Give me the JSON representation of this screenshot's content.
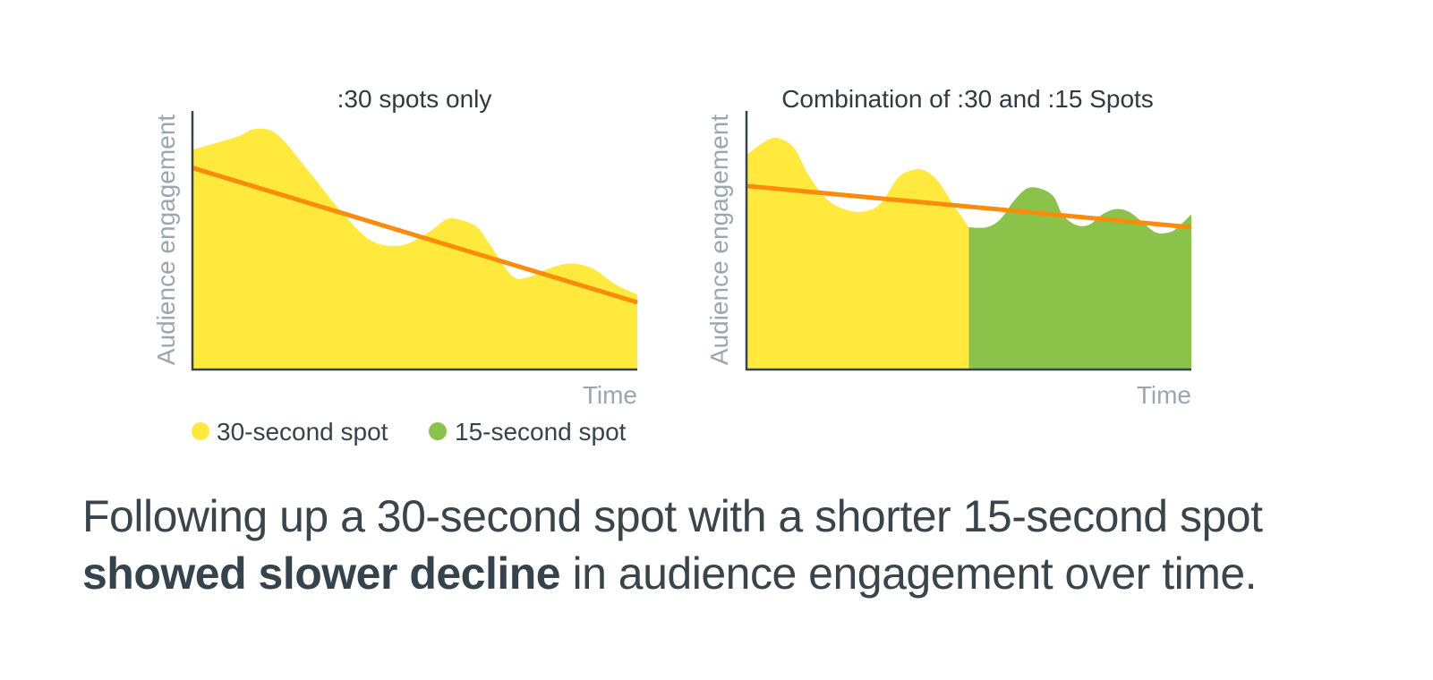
{
  "colors": {
    "thirty_second": "#FFE93D",
    "fifteen_second": "#8BC24A",
    "trend": "#FA8C0A",
    "axis": "#36444C",
    "muted_text": "#9AA7B0"
  },
  "legend": {
    "items": [
      {
        "label": "30-second spot",
        "color": "#FFE93D"
      },
      {
        "label": "15-second spot",
        "color": "#8BC24A"
      }
    ]
  },
  "caption": {
    "line1": "Following up a 30-second spot with a shorter 15-second spot",
    "bold": "showed slower decline",
    "rest": " in audience engagement over time."
  },
  "chart_data": [
    {
      "type": "area",
      "title": ":30 spots only",
      "xlabel": "Time",
      "ylabel": "Audience engagement",
      "xlim": [
        0,
        100
      ],
      "ylim": [
        0,
        100
      ],
      "grid": false,
      "ticks": false,
      "series": [
        {
          "name": "30-second spot",
          "color": "#FFE93D",
          "x": [
            0,
            10,
            14,
            19,
            26,
            33,
            40,
            47,
            53,
            57,
            60,
            64,
            67,
            72,
            76,
            80,
            85,
            90,
            95,
            100
          ],
          "values": [
            85,
            90,
            93,
            91,
            77,
            62,
            50,
            48,
            53,
            58,
            58,
            55,
            48,
            36,
            36,
            39,
            41,
            39,
            33,
            29
          ]
        }
      ],
      "trend": {
        "color": "#FA8C0A",
        "x": [
          0,
          100
        ],
        "values": [
          78,
          26
        ]
      }
    },
    {
      "type": "area",
      "title": "Combination of :30 and :15 Spots",
      "xlabel": "Time",
      "ylabel": "Audience engagement",
      "xlim": [
        0,
        100
      ],
      "ylim": [
        0,
        100
      ],
      "grid": false,
      "ticks": false,
      "series": [
        {
          "name": "30-second spot",
          "color": "#FFE93D",
          "x": [
            0,
            5,
            8,
            11,
            14,
            18,
            22,
            26,
            30,
            34,
            37,
            40,
            43,
            46,
            48,
            50
          ],
          "values": [
            83,
            89,
            89,
            85,
            75,
            66,
            62,
            61,
            64,
            74,
            77,
            77,
            73,
            65,
            60,
            55
          ]
        },
        {
          "name": "15-second spot",
          "color": "#8BC24A",
          "x": [
            50,
            54,
            57,
            60,
            63,
            66,
            69,
            71,
            74,
            77,
            80,
            83,
            86,
            89,
            92,
            95,
            97,
            100
          ],
          "values": [
            55,
            55,
            58,
            65,
            70,
            70,
            67,
            60,
            56,
            56,
            60,
            62,
            61,
            57,
            53,
            53,
            55,
            60
          ]
        }
      ],
      "trend": {
        "color": "#FA8C0A",
        "x": [
          0,
          100
        ],
        "values": [
          71,
          55
        ]
      }
    }
  ]
}
